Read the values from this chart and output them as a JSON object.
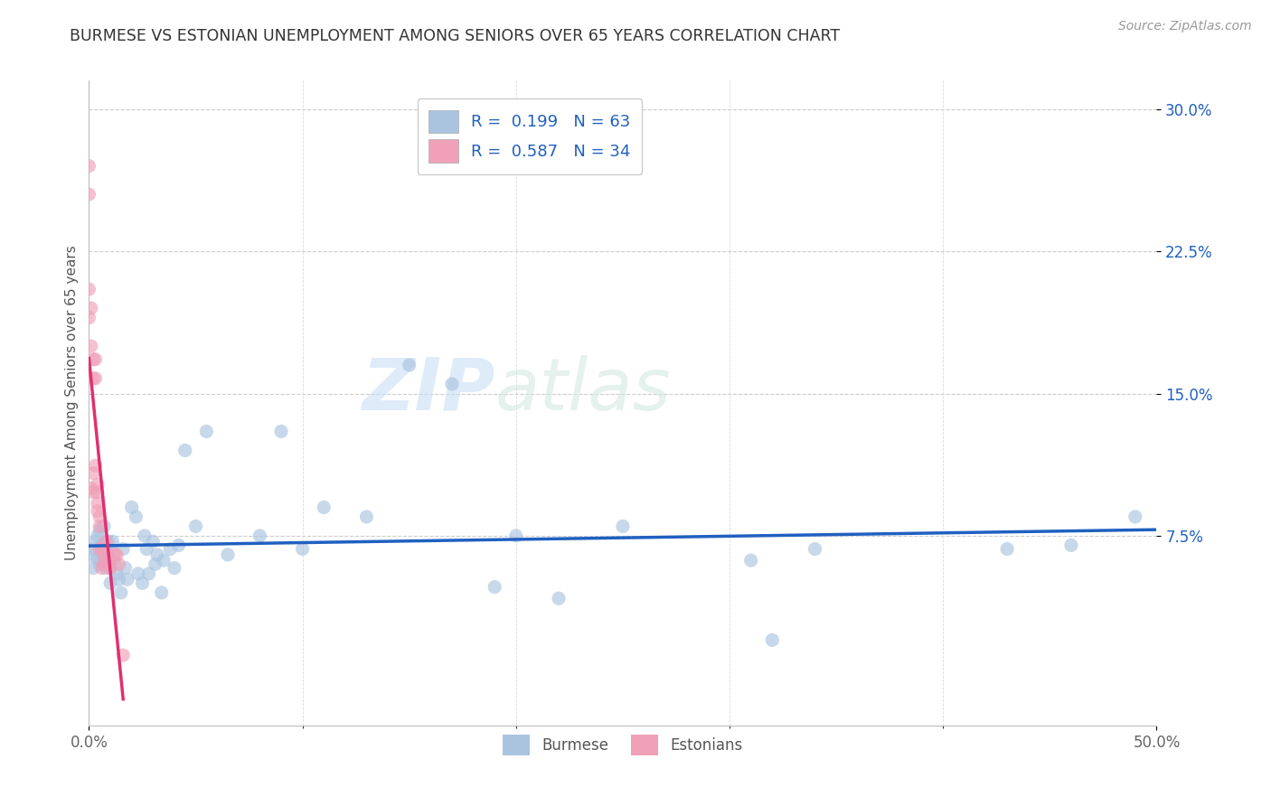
{
  "title": "BURMESE VS ESTONIAN UNEMPLOYMENT AMONG SENIORS OVER 65 YEARS CORRELATION CHART",
  "source": "Source: ZipAtlas.com",
  "ylabel_label": "Unemployment Among Seniors over 65 years",
  "xlim": [
    0.0,
    0.5
  ],
  "ylim": [
    -0.025,
    0.315
  ],
  "burmese_color": "#aac4e0",
  "estonian_color": "#f0a0b8",
  "burmese_line_color": "#2060c0",
  "estonian_line_color": "#e03070",
  "burmese_R": 0.199,
  "burmese_N": 63,
  "estonian_R": 0.587,
  "estonian_N": 34,
  "watermark_zip": "ZIP",
  "watermark_atlas": "atlas",
  "marker_size": 120,
  "marker_alpha": 0.65,
  "burmese_x": [
    0.001,
    0.002,
    0.002,
    0.003,
    0.004,
    0.004,
    0.005,
    0.005,
    0.006,
    0.006,
    0.007,
    0.007,
    0.008,
    0.008,
    0.009,
    0.009,
    0.01,
    0.01,
    0.01,
    0.011,
    0.012,
    0.013,
    0.014,
    0.015,
    0.016,
    0.017,
    0.018,
    0.02,
    0.022,
    0.023,
    0.025,
    0.026,
    0.027,
    0.028,
    0.03,
    0.031,
    0.032,
    0.034,
    0.035,
    0.038,
    0.04,
    0.042,
    0.045,
    0.05,
    0.055,
    0.065,
    0.08,
    0.09,
    0.1,
    0.11,
    0.13,
    0.15,
    0.17,
    0.19,
    0.2,
    0.22,
    0.25,
    0.31,
    0.32,
    0.34,
    0.43,
    0.46,
    0.49
  ],
  "burmese_y": [
    0.065,
    0.068,
    0.058,
    0.072,
    0.063,
    0.075,
    0.06,
    0.078,
    0.065,
    0.07,
    0.08,
    0.062,
    0.068,
    0.058,
    0.072,
    0.06,
    0.068,
    0.058,
    0.05,
    0.072,
    0.062,
    0.055,
    0.052,
    0.045,
    0.068,
    0.058,
    0.052,
    0.09,
    0.085,
    0.055,
    0.05,
    0.075,
    0.068,
    0.055,
    0.072,
    0.06,
    0.065,
    0.045,
    0.062,
    0.068,
    0.058,
    0.07,
    0.12,
    0.08,
    0.13,
    0.065,
    0.075,
    0.13,
    0.068,
    0.09,
    0.085,
    0.165,
    0.155,
    0.048,
    0.075,
    0.042,
    0.08,
    0.062,
    0.02,
    0.068,
    0.068,
    0.07,
    0.085
  ],
  "estonian_x": [
    0.0,
    0.0,
    0.0,
    0.0,
    0.001,
    0.001,
    0.001,
    0.002,
    0.002,
    0.002,
    0.002,
    0.003,
    0.003,
    0.003,
    0.004,
    0.004,
    0.004,
    0.004,
    0.005,
    0.005,
    0.005,
    0.006,
    0.006,
    0.007,
    0.007,
    0.008,
    0.008,
    0.009,
    0.01,
    0.01,
    0.012,
    0.013,
    0.014,
    0.016
  ],
  "estonian_y": [
    0.27,
    0.255,
    0.205,
    0.19,
    0.195,
    0.175,
    0.1,
    0.168,
    0.158,
    0.108,
    0.098,
    0.168,
    0.158,
    0.112,
    0.102,
    0.098,
    0.092,
    0.088,
    0.085,
    0.08,
    0.068,
    0.068,
    0.058,
    0.065,
    0.06,
    0.072,
    0.06,
    0.065,
    0.062,
    0.058,
    0.065,
    0.065,
    0.06,
    0.012
  ],
  "ytick_vals": [
    0.075,
    0.15,
    0.225,
    0.3
  ],
  "ytick_labels": [
    "7.5%",
    "15.0%",
    "22.5%",
    "30.0%"
  ],
  "xtick_vals": [
    0.0,
    0.5
  ],
  "xtick_labels": [
    "0.0%",
    "50.0%"
  ]
}
